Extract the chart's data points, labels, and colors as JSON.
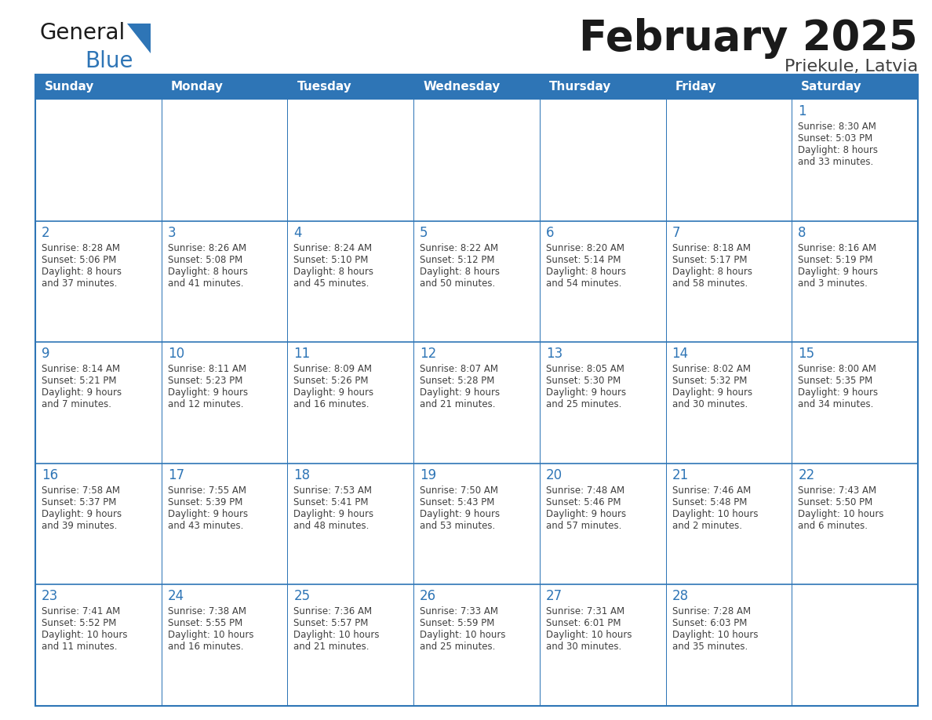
{
  "title": "February 2025",
  "subtitle": "Priekule, Latvia",
  "header_bg": "#2E75B6",
  "header_text_color": "#FFFFFF",
  "cell_bg": "#FFFFFF",
  "cell_border_top_color": "#2E75B6",
  "cell_border_outer_color": "#2E75B6",
  "day_number_color": "#2E75B6",
  "info_text_color": "#404040",
  "title_color": "#1a1a1a",
  "subtitle_color": "#404040",
  "days_of_week": [
    "Sunday",
    "Monday",
    "Tuesday",
    "Wednesday",
    "Thursday",
    "Friday",
    "Saturday"
  ],
  "calendar_data": [
    [
      null,
      null,
      null,
      null,
      null,
      null,
      {
        "day": "1",
        "sunrise": "8:30 AM",
        "sunset": "5:03 PM",
        "daylight": "8 hours",
        "daylight2": "and 33 minutes."
      }
    ],
    [
      {
        "day": "2",
        "sunrise": "8:28 AM",
        "sunset": "5:06 PM",
        "daylight": "8 hours",
        "daylight2": "and 37 minutes."
      },
      {
        "day": "3",
        "sunrise": "8:26 AM",
        "sunset": "5:08 PM",
        "daylight": "8 hours",
        "daylight2": "and 41 minutes."
      },
      {
        "day": "4",
        "sunrise": "8:24 AM",
        "sunset": "5:10 PM",
        "daylight": "8 hours",
        "daylight2": "and 45 minutes."
      },
      {
        "day": "5",
        "sunrise": "8:22 AM",
        "sunset": "5:12 PM",
        "daylight": "8 hours",
        "daylight2": "and 50 minutes."
      },
      {
        "day": "6",
        "sunrise": "8:20 AM",
        "sunset": "5:14 PM",
        "daylight": "8 hours",
        "daylight2": "and 54 minutes."
      },
      {
        "day": "7",
        "sunrise": "8:18 AM",
        "sunset": "5:17 PM",
        "daylight": "8 hours",
        "daylight2": "and 58 minutes."
      },
      {
        "day": "8",
        "sunrise": "8:16 AM",
        "sunset": "5:19 PM",
        "daylight": "9 hours",
        "daylight2": "and 3 minutes."
      }
    ],
    [
      {
        "day": "9",
        "sunrise": "8:14 AM",
        "sunset": "5:21 PM",
        "daylight": "9 hours",
        "daylight2": "and 7 minutes."
      },
      {
        "day": "10",
        "sunrise": "8:11 AM",
        "sunset": "5:23 PM",
        "daylight": "9 hours",
        "daylight2": "and 12 minutes."
      },
      {
        "day": "11",
        "sunrise": "8:09 AM",
        "sunset": "5:26 PM",
        "daylight": "9 hours",
        "daylight2": "and 16 minutes."
      },
      {
        "day": "12",
        "sunrise": "8:07 AM",
        "sunset": "5:28 PM",
        "daylight": "9 hours",
        "daylight2": "and 21 minutes."
      },
      {
        "day": "13",
        "sunrise": "8:05 AM",
        "sunset": "5:30 PM",
        "daylight": "9 hours",
        "daylight2": "and 25 minutes."
      },
      {
        "day": "14",
        "sunrise": "8:02 AM",
        "sunset": "5:32 PM",
        "daylight": "9 hours",
        "daylight2": "and 30 minutes."
      },
      {
        "day": "15",
        "sunrise": "8:00 AM",
        "sunset": "5:35 PM",
        "daylight": "9 hours",
        "daylight2": "and 34 minutes."
      }
    ],
    [
      {
        "day": "16",
        "sunrise": "7:58 AM",
        "sunset": "5:37 PM",
        "daylight": "9 hours",
        "daylight2": "and 39 minutes."
      },
      {
        "day": "17",
        "sunrise": "7:55 AM",
        "sunset": "5:39 PM",
        "daylight": "9 hours",
        "daylight2": "and 43 minutes."
      },
      {
        "day": "18",
        "sunrise": "7:53 AM",
        "sunset": "5:41 PM",
        "daylight": "9 hours",
        "daylight2": "and 48 minutes."
      },
      {
        "day": "19",
        "sunrise": "7:50 AM",
        "sunset": "5:43 PM",
        "daylight": "9 hours",
        "daylight2": "and 53 minutes."
      },
      {
        "day": "20",
        "sunrise": "7:48 AM",
        "sunset": "5:46 PM",
        "daylight": "9 hours",
        "daylight2": "and 57 minutes."
      },
      {
        "day": "21",
        "sunrise": "7:46 AM",
        "sunset": "5:48 PM",
        "daylight": "10 hours",
        "daylight2": "and 2 minutes."
      },
      {
        "day": "22",
        "sunrise": "7:43 AM",
        "sunset": "5:50 PM",
        "daylight": "10 hours",
        "daylight2": "and 6 minutes."
      }
    ],
    [
      {
        "day": "23",
        "sunrise": "7:41 AM",
        "sunset": "5:52 PM",
        "daylight": "10 hours",
        "daylight2": "and 11 minutes."
      },
      {
        "day": "24",
        "sunrise": "7:38 AM",
        "sunset": "5:55 PM",
        "daylight": "10 hours",
        "daylight2": "and 16 minutes."
      },
      {
        "day": "25",
        "sunrise": "7:36 AM",
        "sunset": "5:57 PM",
        "daylight": "10 hours",
        "daylight2": "and 21 minutes."
      },
      {
        "day": "26",
        "sunrise": "7:33 AM",
        "sunset": "5:59 PM",
        "daylight": "10 hours",
        "daylight2": "and 25 minutes."
      },
      {
        "day": "27",
        "sunrise": "7:31 AM",
        "sunset": "6:01 PM",
        "daylight": "10 hours",
        "daylight2": "and 30 minutes."
      },
      {
        "day": "28",
        "sunrise": "7:28 AM",
        "sunset": "6:03 PM",
        "daylight": "10 hours",
        "daylight2": "and 35 minutes."
      },
      null
    ]
  ],
  "logo_text1": "General",
  "logo_text2": "Blue",
  "logo_text1_color": "#1a1a1a",
  "logo_text2_color": "#2E75B6",
  "logo_triangle_color": "#2E75B6",
  "fig_width": 11.88,
  "fig_height": 9.18,
  "dpi": 100
}
